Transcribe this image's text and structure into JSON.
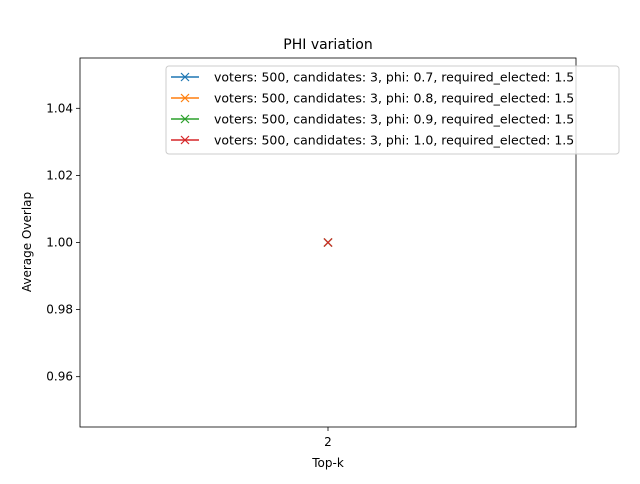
{
  "chart_data": {
    "type": "line",
    "title": "PHI variation",
    "xlabel": "Top-k",
    "ylabel": "Average Overlap",
    "x_ticks": [
      2
    ],
    "y_ticks": [
      0.96,
      0.98,
      1.0,
      1.02,
      1.04
    ],
    "y_tick_labels": [
      "0.96",
      "0.98",
      "1.00",
      "1.02",
      "1.04"
    ],
    "ylim": [
      0.945,
      1.055
    ],
    "grid": false,
    "legend_position": "top-right",
    "marker": "x",
    "series": [
      {
        "name": "voters: 500, candidates: 3, phi: 0.7, required_elected: 1.5",
        "color": "#1f77b4",
        "x": [
          2
        ],
        "y": [
          1.0
        ]
      },
      {
        "name": "voters: 500, candidates: 3, phi: 0.8, required_elected: 1.5",
        "color": "#ff7f0e",
        "x": [
          2
        ],
        "y": [
          1.0
        ]
      },
      {
        "name": "voters: 500, candidates: 3, phi: 0.9, required_elected: 1.5",
        "color": "#2ca02c",
        "x": [
          2
        ],
        "y": [
          1.0
        ]
      },
      {
        "name": "voters: 500, candidates: 3, phi: 1.0, required_elected: 1.5",
        "color": "#d62728",
        "x": [
          2
        ],
        "y": [
          1.0
        ]
      }
    ]
  }
}
